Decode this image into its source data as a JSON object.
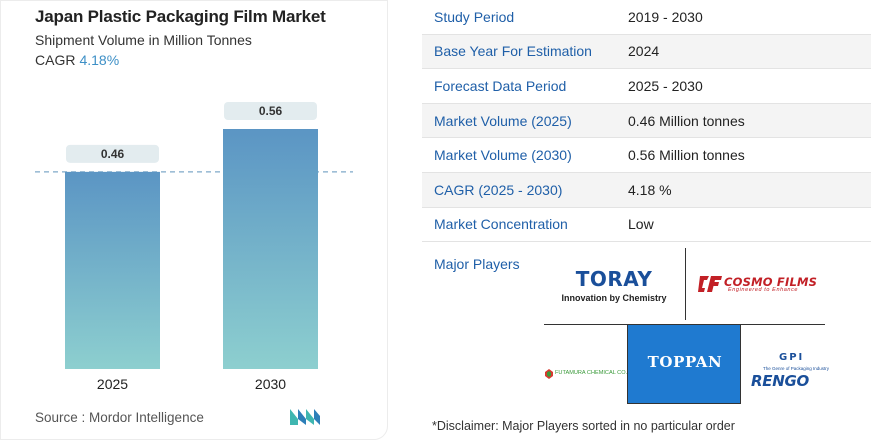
{
  "chart_panel": {
    "title": "Japan Plastic Packaging Film Market",
    "subtitle": "Shipment Volume in Million Tonnes",
    "cagr_label": "CAGR",
    "cagr_value": "4.18%",
    "source": "Source :  Mordor Intelligence"
  },
  "chart_data": {
    "type": "bar",
    "categories": [
      "2025",
      "2030"
    ],
    "values": [
      0.46,
      0.56
    ],
    "data_labels": [
      "0.46",
      "0.56"
    ],
    "title": "Japan Plastic Packaging Film Market",
    "subtitle": "Shipment Volume in Million Tonnes",
    "ylim": [
      0,
      0.56
    ],
    "reference_line": 0.46,
    "grid": false,
    "colors": {
      "bar_top": "#5b95c4",
      "bar_bottom": "#8dcfcf",
      "label_bg": "#e3ecef",
      "reference_line": "#7fa9c8"
    }
  },
  "info_table": {
    "rows": [
      {
        "label": "Study Period",
        "value": "2019 - 2030"
      },
      {
        "label": "Base Year For Estimation",
        "value": "2024"
      },
      {
        "label": "Forecast Data Period",
        "value": "2025 - 2030"
      },
      {
        "label": "Market Volume (2025)",
        "value": "0.46 Million tonnes"
      },
      {
        "label": "Market Volume (2030)",
        "value": "0.56 Million tonnes"
      },
      {
        "label": "CAGR (2025 - 2030)",
        "value": "4.18 %"
      },
      {
        "label": "Market Concentration",
        "value": "Low"
      }
    ]
  },
  "major_players": {
    "label": "Major Players",
    "logos": {
      "toray": {
        "name": "TORAY",
        "tagline": "Innovation by Chemistry",
        "icon": "toray-logo"
      },
      "cosmo": {
        "name": "COSMO FILMS",
        "tagline": "Engineered to Enhance",
        "icon": "cosmo-films-logo"
      },
      "toppan": {
        "name": "TOPPAN",
        "icon": "toppan-logo"
      },
      "futamura": {
        "name": "FUTAMURA CHEMICAL CO.,LTD",
        "icon": "futamura-logo"
      },
      "rengo": {
        "name": "RENGO",
        "group": "GPI",
        "tagline": "The Genre of Packaging Industry",
        "icon": "gpi-rengo-logo"
      }
    },
    "disclaimer": "*Disclaimer: Major Players sorted in no particular order"
  },
  "colors": {
    "accent": "#1f5fa8",
    "cagr": "#3d8fc6"
  }
}
